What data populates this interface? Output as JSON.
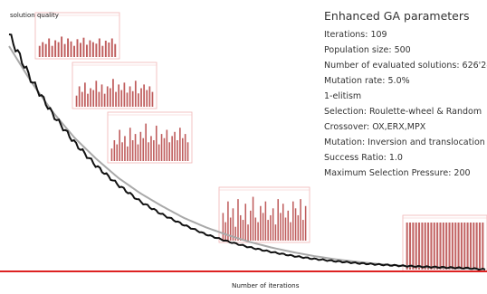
{
  "parameters": {
    "title": "Enhanced GA parameters",
    "lines": [
      "Iterations: 109",
      "Population size: 500",
      "Number of evaluated solutions: 626'246",
      "Mutation rate: 5.0%",
      "1-elitism",
      "Selection: Roulette-wheel & Random",
      "Crossover: OX,ERX,MPX",
      "Mutation: Inversion and translocation",
      "Success Ratio: 1.0",
      "Maximum Selection Pressure: 200"
    ]
  },
  "chart_data": [
    {
      "type": "line",
      "xlabel": "Number of iterations",
      "ylabel": "solution quality",
      "title": "",
      "grid": false,
      "legend": "none",
      "colors": {
        "black_curve": "#111111",
        "gray_curve": "#a9a9a9",
        "baseline": "#dd2222"
      },
      "series": [
        {
          "x": [
            0,
            5,
            10,
            15,
            20,
            25,
            30,
            35,
            40,
            45,
            50,
            55,
            60,
            65,
            70,
            75,
            80,
            85,
            90,
            95,
            100,
            105,
            109
          ],
          "values": [
            1.0,
            0.81,
            0.66,
            0.54,
            0.44,
            0.36,
            0.29,
            0.235,
            0.19,
            0.15,
            0.12,
            0.095,
            0.075,
            0.058,
            0.045,
            0.035,
            0.027,
            0.021,
            0.016,
            0.012,
            0.009,
            0.006,
            0.0
          ]
        },
        {
          "x": [
            0,
            5,
            10,
            15,
            20,
            25,
            30,
            35,
            40,
            45,
            50,
            55,
            60,
            65,
            70,
            75,
            80,
            85,
            90,
            95,
            100,
            105,
            109
          ],
          "values": [
            0.95,
            0.8,
            0.67,
            0.56,
            0.47,
            0.39,
            0.325,
            0.27,
            0.22,
            0.18,
            0.147,
            0.118,
            0.094,
            0.074,
            0.057,
            0.043,
            0.032,
            0.023,
            0.016,
            0.011,
            0.007,
            0.004,
            0.002
          ]
        }
      ],
      "baseline_value": 0.0
    },
    {
      "type": "bar",
      "title": "",
      "iteration": 10,
      "values": [
        0.3,
        0.4,
        0.35,
        0.5,
        0.3,
        0.45,
        0.4,
        0.55,
        0.35,
        0.5,
        0.42,
        0.3,
        0.48,
        0.38,
        0.52,
        0.33,
        0.45,
        0.4,
        0.36,
        0.5,
        0.3,
        0.44,
        0.39,
        0.5,
        0.35
      ]
    },
    {
      "type": "bar",
      "title": "",
      "iteration": 20,
      "values": [
        0.3,
        0.55,
        0.4,
        0.65,
        0.35,
        0.5,
        0.45,
        0.7,
        0.4,
        0.6,
        0.35,
        0.55,
        0.5,
        0.75,
        0.4,
        0.6,
        0.45,
        0.65,
        0.38,
        0.55,
        0.42,
        0.7,
        0.36,
        0.5,
        0.6,
        0.45,
        0.55,
        0.4
      ]
    },
    {
      "type": "bar",
      "title": "",
      "iteration": 30,
      "values": [
        0.3,
        0.5,
        0.4,
        0.75,
        0.45,
        0.6,
        0.35,
        0.8,
        0.5,
        0.65,
        0.4,
        0.7,
        0.55,
        0.9,
        0.45,
        0.6,
        0.5,
        0.85,
        0.4,
        0.65,
        0.55,
        0.75,
        0.45,
        0.6,
        0.7,
        0.5,
        0.8,
        0.55,
        0.65,
        0.45
      ]
    },
    {
      "type": "bar",
      "title": "",
      "iteration": 60,
      "values": [
        0.6,
        0.4,
        0.85,
        0.5,
        0.7,
        0.3,
        0.9,
        0.55,
        0.45,
        0.8,
        0.35,
        0.65,
        0.95,
        0.5,
        0.4,
        0.75,
        0.6,
        0.85,
        0.45,
        0.55,
        0.7,
        0.35,
        0.9,
        0.6,
        0.8,
        0.5,
        0.65,
        0.4,
        0.85,
        0.7,
        0.55,
        0.9,
        0.45,
        0.75
      ]
    },
    {
      "type": "bar",
      "title": "",
      "iteration": 109,
      "values": [
        1,
        1,
        1,
        1,
        1,
        1,
        1,
        1,
        1,
        1,
        1,
        1,
        1,
        1,
        1,
        1,
        1,
        1,
        1,
        1,
        1,
        1,
        1,
        1,
        1,
        1
      ]
    }
  ]
}
